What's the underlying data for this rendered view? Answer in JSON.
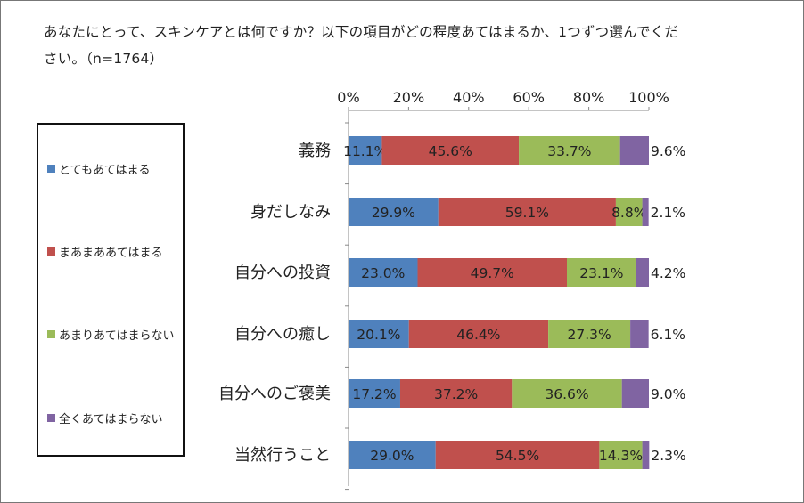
{
  "title": "あなたにとって、スキンケアとは何ですか？以下の項目がどの程度あてはまるか、1つずつ選んでください。（n=1764）",
  "chart_data": {
    "type": "bar",
    "orientation": "horizontal",
    "stacked": true,
    "percent": true,
    "xlim": [
      0,
      100
    ],
    "xticks": [
      "0%",
      "20%",
      "40%",
      "60%",
      "80%",
      "100%"
    ],
    "legend_position": "left",
    "categories": [
      "義務",
      "身だしなみ",
      "自分への投資",
      "自分への癒し",
      "自分へのご褒美",
      "当然行うこと"
    ],
    "series": [
      {
        "name": "とてもあてはまる",
        "color": "#4F81BD",
        "values": [
          11.1,
          29.9,
          23.0,
          20.1,
          17.2,
          29.0
        ],
        "labels": [
          "11.1%",
          "29.9%",
          "23.0%",
          "20.1%",
          "17.2%",
          "29.0%"
        ]
      },
      {
        "name": "まあまああてはまる",
        "color": "#C0504D",
        "values": [
          45.6,
          59.1,
          49.7,
          46.4,
          37.2,
          54.5
        ],
        "labels": [
          "45.6%",
          "59.1%",
          "49.7%",
          "46.4%",
          "37.2%",
          "54.5%"
        ]
      },
      {
        "name": "あまりあてはまらない",
        "color": "#9BBB59",
        "values": [
          33.7,
          8.8,
          23.1,
          27.3,
          36.6,
          14.3
        ],
        "labels": [
          "33.7%",
          "8.8%",
          "23.1%",
          "27.3%",
          "36.6%",
          "14.3%"
        ]
      },
      {
        "name": "全くあてはまらない",
        "color": "#8064A2",
        "values": [
          9.6,
          2.1,
          4.2,
          6.1,
          9.0,
          2.3
        ],
        "labels": [
          "9.6%",
          "2.1%",
          "4.2%",
          "6.1%",
          "9.0%",
          "2.3%"
        ]
      }
    ]
  }
}
